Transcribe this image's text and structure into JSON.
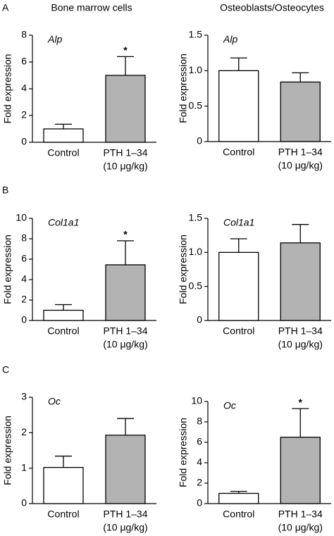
{
  "panel_labels": [
    "A",
    "B",
    "C"
  ],
  "column_titles": [
    "Bone marrow cells",
    "Osteoblasts/Osteocytes"
  ],
  "chart_data": [
    {
      "type": "bar",
      "title": "Alp",
      "ylabel": "Fold expression",
      "categories": [
        [
          "Control"
        ],
        [
          "PTH 1–34",
          "(10 μg/kg)"
        ]
      ],
      "values": [
        1.0,
        5.0
      ],
      "errors": [
        0.35,
        1.4
      ],
      "colors": [
        "#ffffff",
        "#b3b3b3"
      ],
      "value_annotations": [
        null,
        "*"
      ],
      "ylim": [
        0,
        8
      ],
      "yticks": [
        0,
        2,
        4,
        6,
        8
      ]
    },
    {
      "type": "bar",
      "title": "Alp",
      "ylabel": "Fold expression",
      "categories": [
        [
          "Control"
        ],
        [
          "PTH 1–34",
          "(10 μg/kg)"
        ]
      ],
      "values": [
        1.0,
        0.84
      ],
      "errors": [
        0.18,
        0.13
      ],
      "colors": [
        "#ffffff",
        "#b3b3b3"
      ],
      "ylim": [
        0,
        1.5
      ],
      "yticks": [
        0,
        0.5,
        {
          "value": 1,
          "label": "1.0"
        },
        1.5
      ]
    },
    {
      "type": "bar",
      "title": "Col1a1",
      "ylabel": "Fold expression",
      "categories": [
        [
          "Control"
        ],
        [
          "PTH 1–34",
          "(10 μg/kg)"
        ]
      ],
      "values": [
        1.0,
        5.45
      ],
      "errors": [
        0.55,
        2.35
      ],
      "colors": [
        "#ffffff",
        "#b3b3b3"
      ],
      "value_annotations": [
        null,
        "*"
      ],
      "ylim": [
        0,
        10
      ],
      "yticks": [
        0,
        2,
        4,
        6,
        8,
        10
      ]
    },
    {
      "type": "bar",
      "title": "Col1a1",
      "ylabel": "Fold expression",
      "categories": [
        [
          "Control"
        ],
        [
          "PTH 1–34",
          "(10 μg/kg)"
        ]
      ],
      "values": [
        1.0,
        1.14
      ],
      "errors": [
        0.2,
        0.27
      ],
      "colors": [
        "#ffffff",
        "#b3b3b3"
      ],
      "ylim": [
        0,
        1.5
      ],
      "yticks": [
        0,
        0.5,
        {
          "value": 1,
          "label": "1.0"
        },
        1.5
      ]
    },
    {
      "type": "bar",
      "title": "Oc",
      "ylabel": "Fold expression",
      "categories": [
        [
          "Control"
        ],
        [
          "PTH 1–34",
          "(10 μg/kg)"
        ]
      ],
      "values": [
        1.02,
        1.93
      ],
      "errors": [
        0.32,
        0.47
      ],
      "colors": [
        "#ffffff",
        "#b3b3b3"
      ],
      "ylim": [
        0,
        3
      ],
      "yticks": [
        0,
        1,
        2,
        3
      ]
    },
    {
      "type": "bar",
      "title": "Oc",
      "ylabel": "Fold expression",
      "categories": [
        [
          "Control"
        ],
        [
          "PTH 1–34",
          "(10 μg/kg)"
        ]
      ],
      "values": [
        1.0,
        6.5
      ],
      "errors": [
        0.2,
        2.8
      ],
      "colors": [
        "#ffffff",
        "#b3b3b3"
      ],
      "value_annotations": [
        null,
        "*"
      ],
      "ylim": [
        0,
        10
      ],
      "yticks": [
        0,
        2,
        4,
        6,
        8,
        10
      ]
    }
  ]
}
